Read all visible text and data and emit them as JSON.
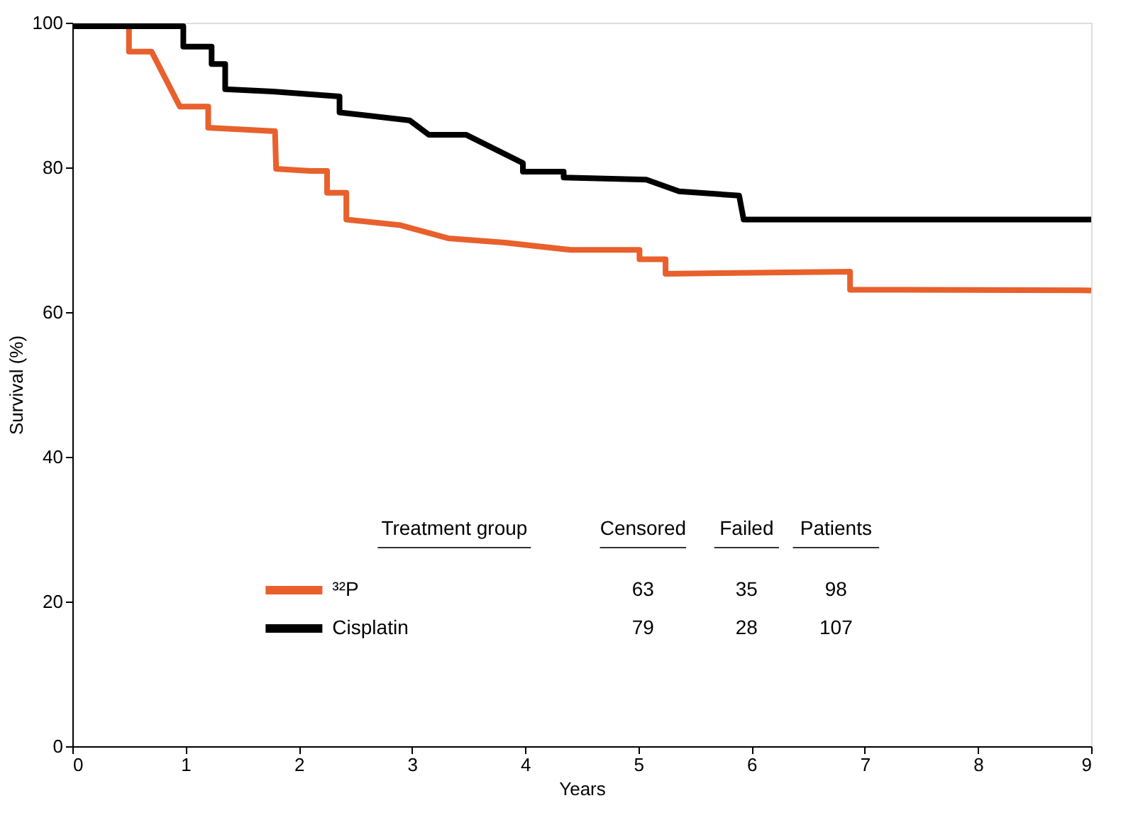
{
  "chart_data": {
    "type": "line",
    "xlabel": "Years",
    "ylabel": "Survival (%)",
    "xlim": [
      0,
      9
    ],
    "ylim": [
      0,
      100
    ],
    "xticks": [
      0,
      1,
      2,
      3,
      4,
      5,
      6,
      7,
      8,
      9
    ],
    "yticks": [
      0,
      20,
      40,
      60,
      80,
      100
    ],
    "grid": false,
    "legend": "bottom",
    "legend_title": "Treatment group",
    "marker": "none",
    "line_style": "solid",
    "series": [
      {
        "name": "³²P",
        "color": "#e8602c",
        "x": [
          0,
          0.5,
          0.5,
          0.7,
          0.95,
          1.2,
          1.2,
          1.79,
          1.8,
          2.1,
          2.25,
          2.25,
          2.42,
          2.42,
          2.9,
          3.32,
          3.82,
          4.4,
          5.01,
          5.01,
          5.24,
          5.24,
          6.87,
          6.87,
          9
        ],
        "values": [
          99.5,
          99.5,
          96,
          96,
          88.4,
          88.4,
          85.5,
          85,
          79.8,
          79.5,
          79.5,
          76.5,
          76.5,
          72.8,
          72,
          70.2,
          69.6,
          68.6,
          68.6,
          67.3,
          67.3,
          65.3,
          65.6,
          63.1,
          63
        ]
      },
      {
        "name": "Cisplatin",
        "color": "#000000",
        "x": [
          0,
          0.98,
          0.98,
          1.23,
          1.23,
          1.35,
          1.35,
          1.77,
          2.36,
          2.36,
          2.98,
          3.15,
          3.48,
          3.98,
          3.98,
          4.34,
          4.34,
          5.07,
          5.36,
          5.89,
          5.93,
          9
        ],
        "values": [
          99.5,
          99.5,
          96.7,
          96.7,
          94.3,
          94.3,
          90.8,
          90.5,
          89.8,
          87.6,
          86.5,
          84.5,
          84.5,
          80.6,
          79.4,
          79.4,
          78.6,
          78.3,
          76.7,
          76.1,
          72.8,
          72.8
        ]
      }
    ],
    "annotations": [
      "Censored",
      "Failed",
      "Patients",
      "63",
      "35",
      "98",
      "79",
      "28",
      "107"
    ]
  }
}
